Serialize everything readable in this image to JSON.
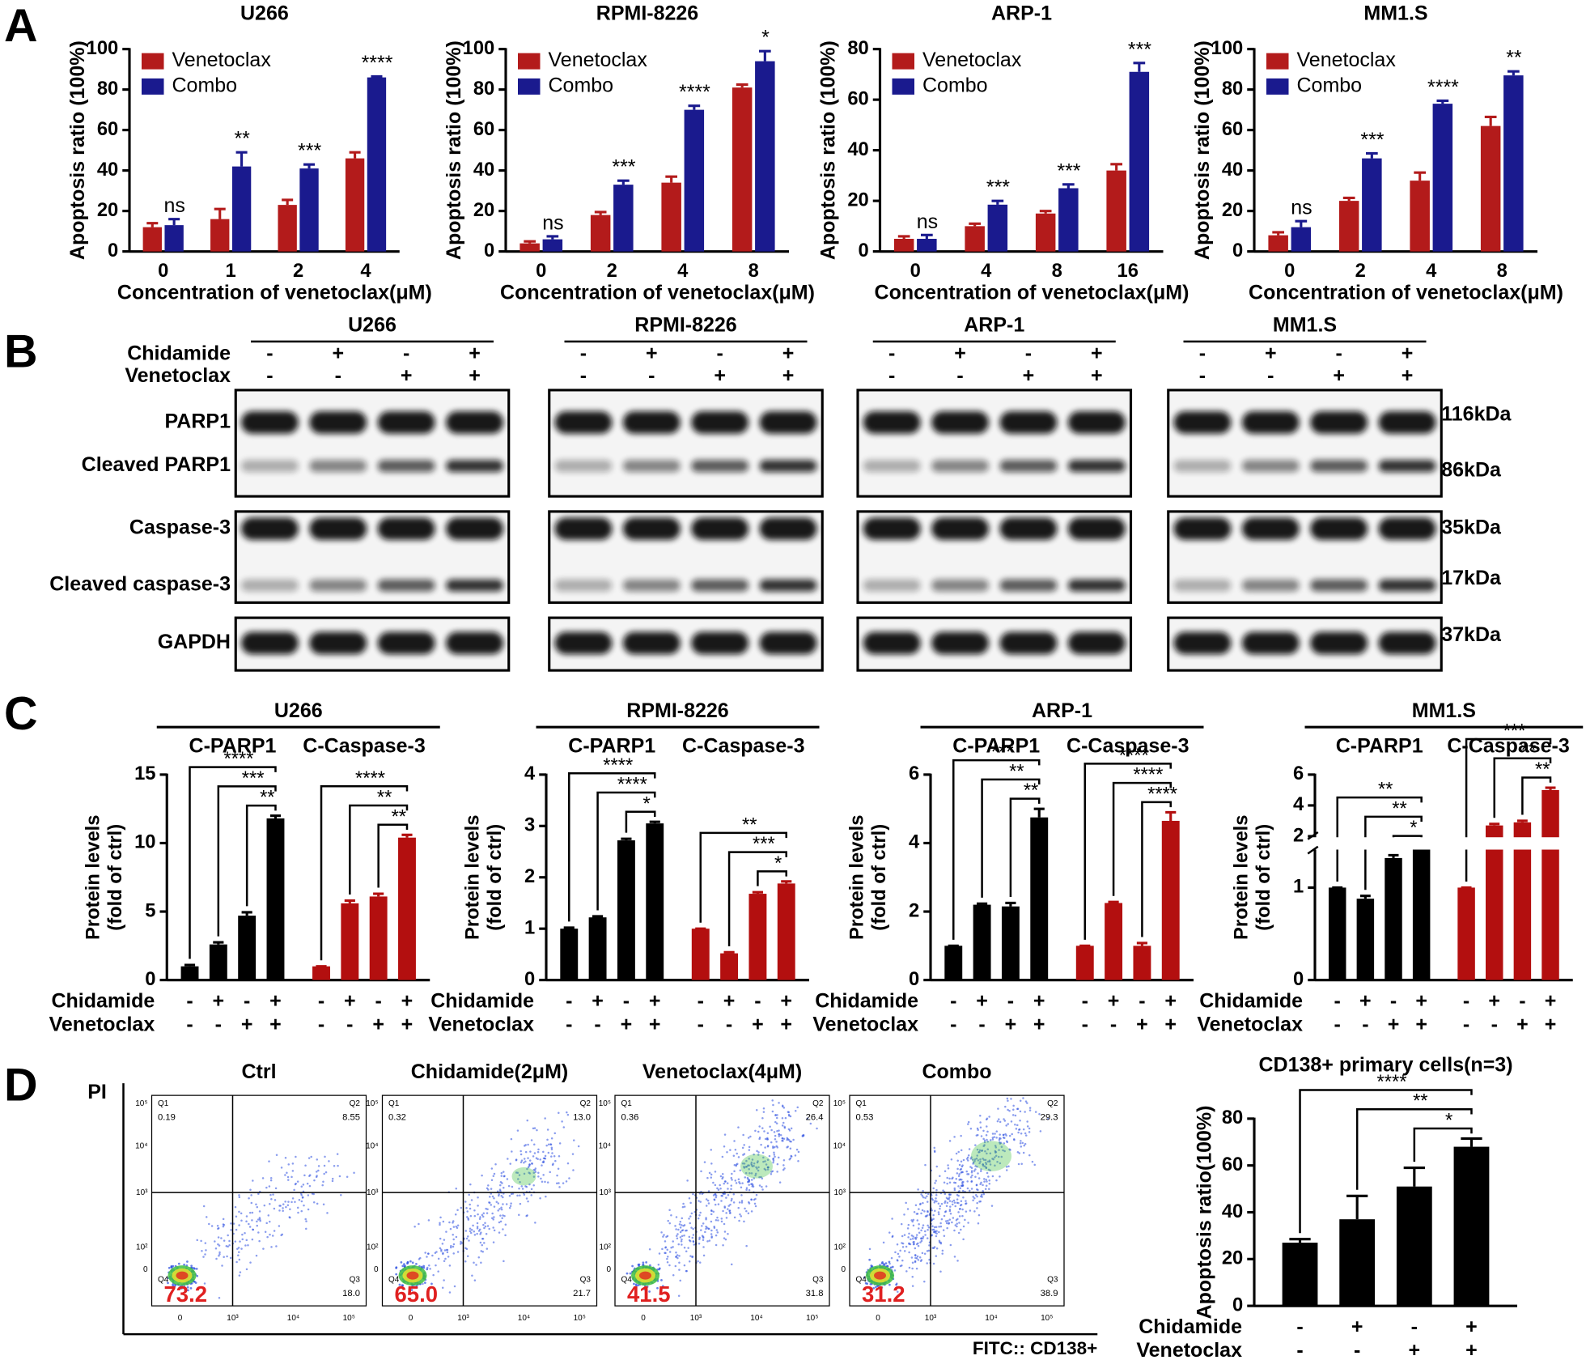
{
  "panel_labels": [
    "A",
    "B",
    "C",
    "D"
  ],
  "chart_data": [
    {
      "type": "bar",
      "title": "U266",
      "y_label": "Apoptosis ratio (100%)",
      "x_label": "Concentration of venetoclax(μM)",
      "categories": [
        "0",
        "1",
        "2",
        "4"
      ],
      "series": [
        {
          "name": "Venetoclax",
          "color": "#b31b1b",
          "values": [
            12,
            16,
            23,
            46
          ],
          "errors": [
            2,
            5,
            2.5,
            3
          ]
        },
        {
          "name": "Combo",
          "color": "#1a1a8e",
          "values": [
            13,
            42,
            41,
            86
          ],
          "errors": [
            3,
            7,
            2,
            0.5
          ]
        }
      ],
      "annotations": [
        "ns",
        "**",
        "***",
        "****"
      ],
      "ylim": [
        0,
        100
      ],
      "yticks": [
        0,
        20,
        40,
        60,
        80,
        100
      ]
    },
    {
      "type": "bar",
      "title": "RPMI-8226",
      "y_label": "Apoptosis ratio (100%)",
      "x_label": "Concentration of venetoclax(μM)",
      "categories": [
        "0",
        "2",
        "4",
        "8"
      ],
      "series": [
        {
          "name": "Venetoclax",
          "color": "#b31b1b",
          "values": [
            4,
            18,
            34,
            81
          ],
          "errors": [
            1,
            1.5,
            3,
            1.5
          ]
        },
        {
          "name": "Combo",
          "color": "#1a1a8e",
          "values": [
            6,
            33,
            70,
            94
          ],
          "errors": [
            1.5,
            2,
            2,
            5
          ]
        }
      ],
      "annotations": [
        "ns",
        "***",
        "****",
        "*"
      ],
      "ylim": [
        0,
        100
      ],
      "yticks": [
        0,
        20,
        40,
        60,
        80,
        100
      ]
    },
    {
      "type": "bar",
      "title": "ARP-1",
      "y_label": "Apoptosis ratio (100%)",
      "x_label": "Concentration of venetoclax(μM)",
      "categories": [
        "0",
        "4",
        "8",
        "16"
      ],
      "series": [
        {
          "name": "Venetoclax",
          "color": "#b31b1b",
          "values": [
            5,
            10,
            15,
            32
          ],
          "errors": [
            1,
            1,
            1,
            2.5
          ]
        },
        {
          "name": "Combo",
          "color": "#1a1a8e",
          "values": [
            5,
            18.5,
            25,
            71
          ],
          "errors": [
            1.5,
            1.5,
            1.5,
            3.5
          ]
        }
      ],
      "annotations": [
        "ns",
        "***",
        "***",
        "***"
      ],
      "ylim": [
        0,
        80
      ],
      "yticks": [
        0,
        20,
        40,
        60,
        80
      ]
    },
    {
      "type": "bar",
      "title": "MM1.S",
      "y_label": "Apoptosis ratio (100%)",
      "x_label": "Concentration of venetoclax(μM)",
      "categories": [
        "0",
        "2",
        "4",
        "8"
      ],
      "series": [
        {
          "name": "Venetoclax",
          "color": "#b31b1b",
          "values": [
            8,
            25,
            35,
            62
          ],
          "errors": [
            1.5,
            1.5,
            4,
            4.5
          ]
        },
        {
          "name": "Combo",
          "color": "#1a1a8e",
          "values": [
            12,
            46,
            73,
            87
          ],
          "errors": [
            3,
            2.5,
            1.5,
            2
          ]
        }
      ],
      "annotations": [
        "ns",
        "***",
        "****",
        "**"
      ],
      "ylim": [
        0,
        100
      ],
      "yticks": [
        0,
        20,
        40,
        60,
        80,
        100
      ]
    },
    {
      "type": "bar",
      "title": "U266",
      "y_label": [
        "Protein levels",
        "(fold of ctrl)"
      ],
      "series": [
        {
          "name": "C-PARP1",
          "color": "#000000",
          "values": [
            1,
            2.6,
            4.7,
            11.8
          ],
          "errors": [
            0.1,
            0.15,
            0.25,
            0.2
          ],
          "significance": [
            "****",
            "***",
            "**"
          ]
        },
        {
          "name": "C-Caspase-3",
          "color": "#b30f0f",
          "values": [
            1,
            5.6,
            6.1,
            10.4
          ],
          "errors": [
            0,
            0.2,
            0.2,
            0.2
          ],
          "significance": [
            "****",
            "**",
            "**"
          ]
        }
      ],
      "conditions": [
        {
          "name": "Chidamide",
          "signs": [
            "-",
            "+",
            "-",
            "+"
          ]
        },
        {
          "name": "Venetoclax",
          "signs": [
            "-",
            "-",
            "+",
            "+"
          ]
        }
      ],
      "ylim": [
        0,
        15
      ],
      "yticks": [
        0,
        5,
        10,
        15
      ]
    },
    {
      "type": "bar",
      "title": "RPMI-8226",
      "y_label": [
        "Protein levels",
        "(fold of ctrl)"
      ],
      "series": [
        {
          "name": "C-PARP1",
          "color": "#000000",
          "values": [
            1,
            1.22,
            2.72,
            3.05
          ],
          "errors": [
            0.02,
            0.02,
            0.03,
            0.03
          ],
          "significance": [
            "****",
            "****",
            "*"
          ]
        },
        {
          "name": "C-Caspase-3",
          "color": "#b30f0f",
          "values": [
            1,
            0.52,
            1.68,
            1.88
          ],
          "errors": [
            0,
            0.02,
            0.03,
            0.04
          ],
          "significance": [
            "**",
            "***",
            "*"
          ]
        }
      ],
      "conditions": [
        {
          "name": "Chidamide",
          "signs": [
            "-",
            "+",
            "-",
            "+"
          ]
        },
        {
          "name": "Venetoclax",
          "signs": [
            "-",
            "-",
            "+",
            "+"
          ]
        }
      ],
      "ylim": [
        0,
        4
      ],
      "yticks": [
        0,
        1,
        2,
        3,
        4
      ]
    },
    {
      "type": "bar",
      "title": "ARP-1",
      "y_label": [
        "Protein levels",
        "(fold of ctrl)"
      ],
      "series": [
        {
          "name": "C-PARP1",
          "color": "#000000",
          "values": [
            1,
            2.2,
            2.15,
            4.75
          ],
          "errors": [
            0,
            0.03,
            0.1,
            0.25
          ],
          "significance": [
            "***",
            "**",
            "**"
          ]
        },
        {
          "name": "C-Caspase-3",
          "color": "#b30f0f",
          "values": [
            1,
            2.25,
            1,
            4.65
          ],
          "errors": [
            0,
            0.03,
            0.08,
            0.25
          ],
          "significance": [
            "****",
            "****",
            "****"
          ]
        }
      ],
      "conditions": [
        {
          "name": "Chidamide",
          "signs": [
            "-",
            "+",
            "-",
            "+"
          ]
        },
        {
          "name": "Venetoclax",
          "signs": [
            "-",
            "-",
            "+",
            "+"
          ]
        }
      ],
      "ylim": [
        0,
        6
      ],
      "yticks": [
        0,
        2,
        4,
        6
      ]
    },
    {
      "type": "bar",
      "title": "MM1.S",
      "y_label": [
        "Protein levels",
        "(fold of ctrl)"
      ],
      "series": [
        {
          "name": "C-PARP1",
          "color": "#000000",
          "values": [
            1,
            0.88,
            1.32,
            1.55
          ],
          "errors": [
            0,
            0.03,
            0.03,
            0.04
          ],
          "significance": [
            "**",
            "**",
            "*"
          ]
        },
        {
          "name": "C-Caspase-3",
          "color": "#b30f0f",
          "values": [
            1,
            2.7,
            2.9,
            5
          ],
          "errors": [
            0,
            0.1,
            0.1,
            0.15
          ],
          "significance": [
            "***",
            "**",
            "**"
          ]
        }
      ],
      "conditions": [
        {
          "name": "Chidamide",
          "signs": [
            "-",
            "+",
            "-",
            "+"
          ]
        },
        {
          "name": "Venetoclax",
          "signs": [
            "-",
            "-",
            "+",
            "+"
          ]
        }
      ],
      "ylim": [
        0,
        6
      ],
      "ybreak": [
        1.4,
        2
      ],
      "yticks": [
        0,
        1,
        2,
        4,
        6
      ]
    },
    {
      "type": "bar",
      "title": "CD138+ primary cells(n=3)",
      "y_label": "Apoptosis ratio(100%)",
      "series": [
        {
          "color": "#000000",
          "values": [
            27,
            37,
            51,
            68
          ],
          "errors": [
            1.5,
            10,
            8,
            3.5
          ],
          "significance": [
            "****",
            "**",
            "*"
          ]
        }
      ],
      "conditions": [
        {
          "name": "Chidamide",
          "signs": [
            "-",
            "+",
            "-",
            "+"
          ]
        },
        {
          "name": "Venetoclax",
          "signs": [
            "-",
            "-",
            "+",
            "+"
          ]
        }
      ],
      "ylim": [
        0,
        80
      ],
      "yticks": [
        0,
        20,
        40,
        60,
        80
      ]
    }
  ],
  "blots": {
    "cell_lines": [
      "U266",
      "RPMI-8226",
      "ARP-1",
      "MM1.S"
    ],
    "treatments": [
      {
        "name": "Chidamide",
        "signs": [
          "-",
          "+",
          "-",
          "+"
        ]
      },
      {
        "name": "Venetoclax",
        "signs": [
          "-",
          "-",
          "+",
          "+"
        ]
      }
    ],
    "proteins": [
      "PARP1",
      "Cleaved PARP1",
      "Caspase-3",
      "Cleaved caspase-3",
      "GAPDH"
    ],
    "sizes": [
      "116kDa",
      "86kDa",
      "35kDa",
      "17kDa",
      "37kDa"
    ]
  },
  "flow": {
    "titles": [
      "Ctrl",
      "Chidamide(2μM)",
      "Venetoclax(4μM)",
      "Combo"
    ],
    "y_label": "PI",
    "x_label": "FITC:: CD138+",
    "quadrants": [
      "Q1",
      "Q2",
      "Q3",
      "Q4"
    ],
    "values": [
      [
        "0.19",
        "8.55",
        "18.0",
        "73.2"
      ],
      [
        "0.32",
        "13.0",
        "21.7",
        "65.0"
      ],
      [
        "0.36",
        "26.4",
        "31.8",
        "41.5"
      ],
      [
        "0.53",
        "29.3",
        "38.9",
        "31.2"
      ]
    ],
    "x_ticks": [
      "0",
      "10³",
      "10⁴",
      "10⁵"
    ],
    "y_ticks": [
      "10⁵",
      "10⁴",
      "10³",
      "10²",
      "0"
    ]
  }
}
